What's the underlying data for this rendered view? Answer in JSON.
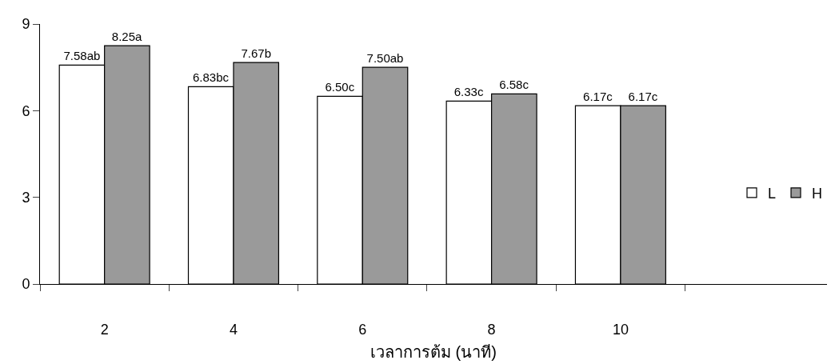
{
  "chart_data": {
    "type": "bar",
    "xlabel": "เวลาการต้ม (นาที)",
    "categories": [
      "2",
      "4",
      "6",
      "8",
      "10"
    ],
    "series": [
      {
        "name": "L",
        "color": "#ffffff",
        "values": [
          7.58,
          6.83,
          6.5,
          6.33,
          6.17
        ],
        "value_labels": [
          "7.58ab",
          "6.83bc",
          "6.50c",
          "6.33c",
          "6.17c"
        ]
      },
      {
        "name": "H",
        "color": "#9a9a9a",
        "values": [
          8.25,
          7.67,
          7.5,
          6.58,
          6.17
        ],
        "value_labels": [
          "8.25a",
          "7.67b",
          "7.50ab",
          "6.58c",
          "6.17c"
        ]
      }
    ],
    "ylim": [
      0,
      9
    ],
    "yticks": [
      0,
      3,
      6,
      9
    ],
    "grid": false,
    "legend": "right"
  }
}
